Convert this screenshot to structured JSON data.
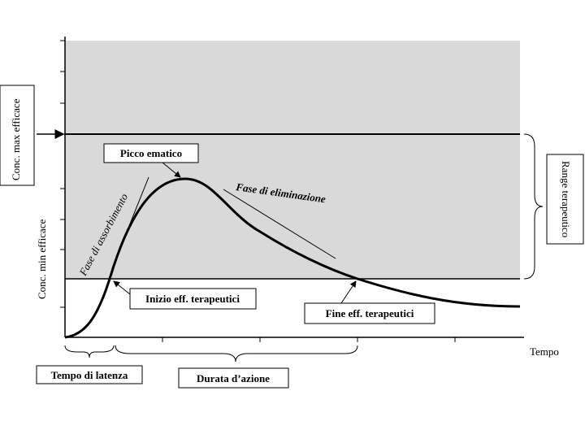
{
  "labels": {
    "peak": "Picco ematico",
    "onset": "Inizio eff. terapeutici",
    "end": "Fine eff. terapeutici",
    "latency": "Tempo di latenza",
    "duration": "Durata d’azione",
    "x_axis": "Tempo",
    "elimination": "Fase di eliminazione",
    "absorption": "Fase di assorbimento",
    "max_conc": "Conc. max efficace",
    "min_conc": "Conc. min efficace",
    "range": "Range terapeutico"
  }
}
